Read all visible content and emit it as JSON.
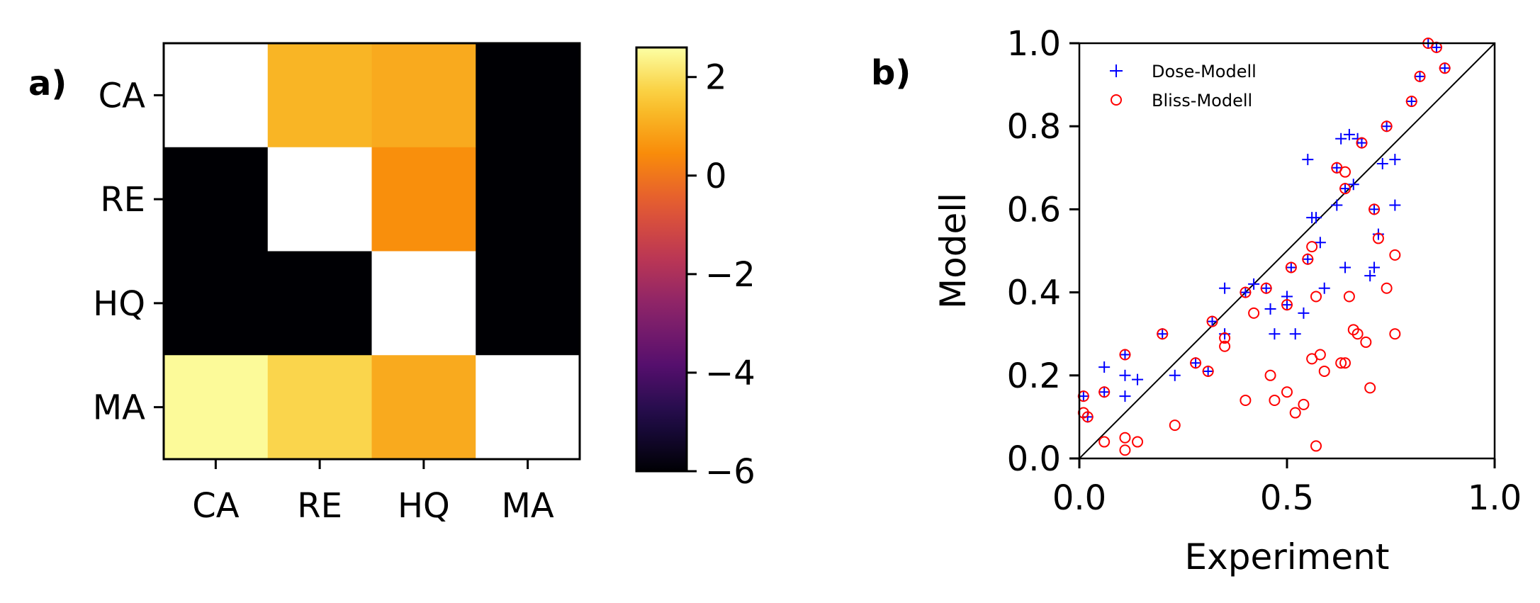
{
  "chart_data": [
    {
      "type": "heatmap",
      "panel_label": "a)",
      "row_labels": [
        "CA",
        "RE",
        "HQ",
        "MA"
      ],
      "col_labels": [
        "CA",
        "RE",
        "HQ",
        "MA"
      ],
      "values": [
        [
          null,
          1.2,
          1.0,
          -6
        ],
        [
          -6,
          null,
          0.5,
          -6
        ],
        [
          -6,
          -6,
          null,
          -6
        ],
        [
          2.5,
          1.8,
          1.0,
          null
        ]
      ],
      "colormap": "inferno",
      "missing_color": "#ffffff",
      "colorbar": {
        "vmin": -6,
        "vmax": 2.6,
        "ticks": [
          2,
          0,
          -2,
          -4,
          -6
        ],
        "tick_labels": [
          "2",
          "0",
          "−2",
          "−4",
          "−6"
        ]
      }
    },
    {
      "type": "scatter",
      "panel_label": "b)",
      "xlabel": "Experiment",
      "ylabel": "Modell",
      "xlim": [
        0,
        1
      ],
      "ylim": [
        0,
        1
      ],
      "x_ticks": [
        "0.0",
        "0.5",
        "1.0"
      ],
      "y_ticks": [
        "0.0",
        "0.2",
        "0.4",
        "0.6",
        "0.8",
        "1.0"
      ],
      "legend_position": "top-left",
      "reference_line": "y = x",
      "series": [
        {
          "name": "Dose-Modell",
          "marker": "+",
          "color": "#0000ff",
          "points": [
            [
              0.01,
              0.15
            ],
            [
              0.02,
              0.1
            ],
            [
              0.06,
              0.22
            ],
            [
              0.06,
              0.16
            ],
            [
              0.11,
              0.25
            ],
            [
              0.11,
              0.2
            ],
            [
              0.11,
              0.15
            ],
            [
              0.14,
              0.19
            ],
            [
              0.2,
              0.3
            ],
            [
              0.23,
              0.2
            ],
            [
              0.28,
              0.23
            ],
            [
              0.31,
              0.21
            ],
            [
              0.32,
              0.33
            ],
            [
              0.35,
              0.41
            ],
            [
              0.35,
              0.3
            ],
            [
              0.4,
              0.4
            ],
            [
              0.42,
              0.42
            ],
            [
              0.45,
              0.41
            ],
            [
              0.46,
              0.36
            ],
            [
              0.47,
              0.3
            ],
            [
              0.5,
              0.37
            ],
            [
              0.5,
              0.39
            ],
            [
              0.51,
              0.46
            ],
            [
              0.52,
              0.3
            ],
            [
              0.54,
              0.35
            ],
            [
              0.55,
              0.48
            ],
            [
              0.55,
              0.72
            ],
            [
              0.56,
              0.58
            ],
            [
              0.57,
              0.58
            ],
            [
              0.58,
              0.52
            ],
            [
              0.59,
              0.41
            ],
            [
              0.62,
              0.7
            ],
            [
              0.62,
              0.61
            ],
            [
              0.63,
              0.77
            ],
            [
              0.64,
              0.46
            ],
            [
              0.64,
              0.65
            ],
            [
              0.65,
              0.78
            ],
            [
              0.66,
              0.66
            ],
            [
              0.67,
              0.77
            ],
            [
              0.68,
              0.76
            ],
            [
              0.7,
              0.44
            ],
            [
              0.71,
              0.46
            ],
            [
              0.71,
              0.6
            ],
            [
              0.72,
              0.54
            ],
            [
              0.73,
              0.71
            ],
            [
              0.74,
              0.8
            ],
            [
              0.76,
              0.72
            ],
            [
              0.76,
              0.61
            ],
            [
              0.8,
              0.86
            ],
            [
              0.82,
              0.92
            ],
            [
              0.84,
              1.0
            ],
            [
              0.86,
              0.99
            ],
            [
              0.88,
              0.94
            ]
          ]
        },
        {
          "name": "Bliss-Modell",
          "marker": "o",
          "color": "#ff0000",
          "points": [
            [
              0.01,
              0.11
            ],
            [
              0.01,
              0.15
            ],
            [
              0.02,
              0.1
            ],
            [
              0.06,
              0.04
            ],
            [
              0.06,
              0.16
            ],
            [
              0.11,
              0.25
            ],
            [
              0.11,
              0.05
            ],
            [
              0.11,
              0.02
            ],
            [
              0.14,
              0.04
            ],
            [
              0.2,
              0.3
            ],
            [
              0.23,
              0.08
            ],
            [
              0.28,
              0.23
            ],
            [
              0.31,
              0.21
            ],
            [
              0.32,
              0.33
            ],
            [
              0.35,
              0.29
            ],
            [
              0.35,
              0.27
            ],
            [
              0.4,
              0.4
            ],
            [
              0.4,
              0.14
            ],
            [
              0.42,
              0.35
            ],
            [
              0.45,
              0.41
            ],
            [
              0.46,
              0.2
            ],
            [
              0.47,
              0.14
            ],
            [
              0.5,
              0.37
            ],
            [
              0.5,
              0.16
            ],
            [
              0.51,
              0.46
            ],
            [
              0.52,
              0.11
            ],
            [
              0.54,
              0.13
            ],
            [
              0.55,
              0.48
            ],
            [
              0.56,
              0.51
            ],
            [
              0.56,
              0.24
            ],
            [
              0.57,
              0.39
            ],
            [
              0.57,
              0.03
            ],
            [
              0.58,
              0.25
            ],
            [
              0.59,
              0.21
            ],
            [
              0.62,
              0.7
            ],
            [
              0.63,
              0.23
            ],
            [
              0.64,
              0.23
            ],
            [
              0.64,
              0.69
            ],
            [
              0.64,
              0.65
            ],
            [
              0.65,
              0.39
            ],
            [
              0.66,
              0.31
            ],
            [
              0.67,
              0.3
            ],
            [
              0.68,
              0.76
            ],
            [
              0.69,
              0.28
            ],
            [
              0.7,
              0.17
            ],
            [
              0.71,
              0.6
            ],
            [
              0.72,
              0.53
            ],
            [
              0.74,
              0.8
            ],
            [
              0.74,
              0.41
            ],
            [
              0.76,
              0.49
            ],
            [
              0.76,
              0.3
            ],
            [
              0.8,
              0.86
            ],
            [
              0.82,
              0.92
            ],
            [
              0.84,
              1.0
            ],
            [
              0.86,
              0.99
            ],
            [
              0.88,
              0.94
            ]
          ]
        }
      ]
    }
  ]
}
